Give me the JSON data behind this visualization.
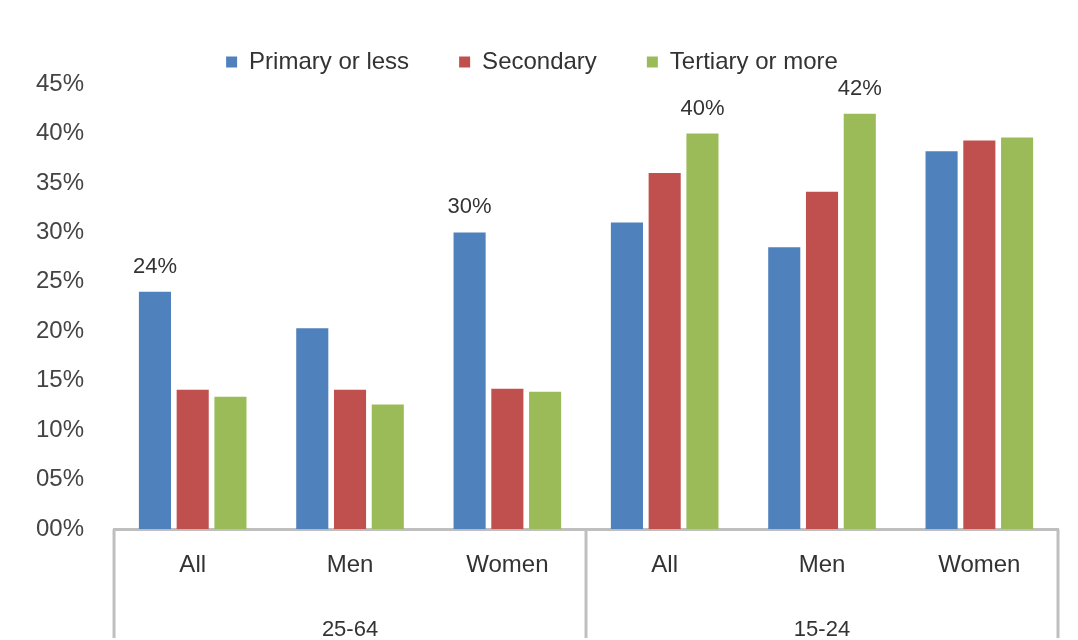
{
  "chart_data": {
    "type": "bar",
    "categories": [
      "All",
      "Men",
      "Women",
      "All",
      "Men",
      "Women"
    ],
    "series": [
      {
        "name": "Primary or less",
        "color": "#4f81bd",
        "values": [
          24,
          20.3,
          30,
          31,
          28.5,
          38.2
        ],
        "value_labels": [
          "24%",
          null,
          "30%",
          null,
          null,
          null
        ]
      },
      {
        "name": "Secondary",
        "color": "#c0504d",
        "values": [
          14.1,
          14.1,
          14.2,
          36,
          34.1,
          39.3
        ],
        "value_labels": [
          null,
          null,
          null,
          null,
          null,
          null
        ]
      },
      {
        "name": "Tertiary or more",
        "color": "#9bbb59",
        "values": [
          13.4,
          12.6,
          13.9,
          40,
          42,
          39.6
        ],
        "value_labels": [
          null,
          null,
          null,
          "40%",
          "42%",
          null
        ]
      }
    ],
    "annotations": [
      "25-64",
      "15-24"
    ],
    "ylim": [
      0,
      45
    ],
    "yticks": [
      {
        "value": 0,
        "label": "00%"
      },
      {
        "value": 5,
        "label": "05%"
      },
      {
        "value": 10,
        "label": "10%"
      },
      {
        "value": 15,
        "label": "15%"
      },
      {
        "value": 20,
        "label": "20%"
      },
      {
        "value": 25,
        "label": "25%"
      },
      {
        "value": 30,
        "label": "30%"
      },
      {
        "value": 35,
        "label": "35%"
      },
      {
        "value": 40,
        "label": "40%"
      },
      {
        "value": 45,
        "label": "45%"
      }
    ],
    "grid": false,
    "legend": "top"
  }
}
